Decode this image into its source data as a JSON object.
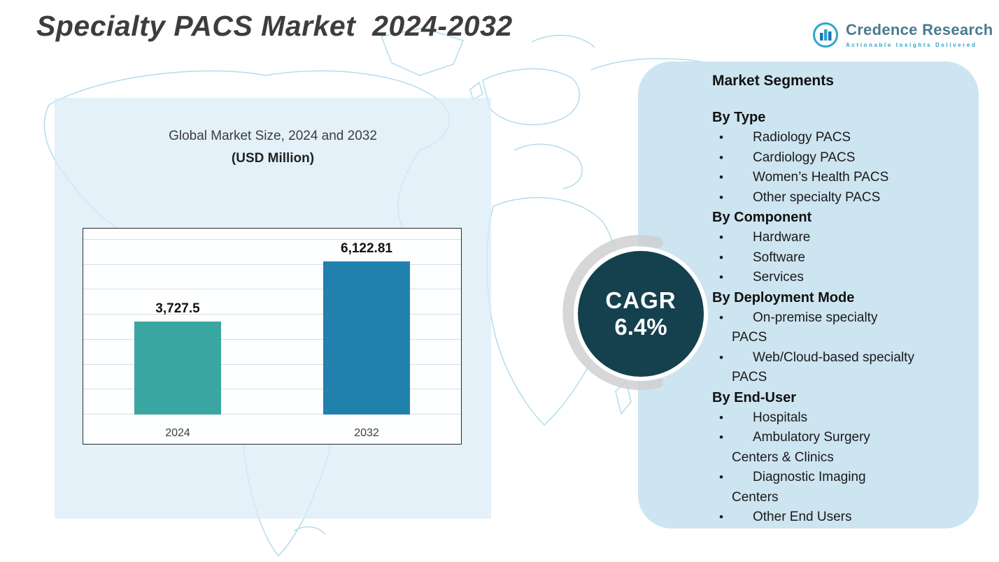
{
  "page": {
    "title": "Specialty PACS Market  2024-2032"
  },
  "logo": {
    "name": "Credence Research",
    "tagline": "Actionable Insights Delivered"
  },
  "chart_data": {
    "type": "bar",
    "title": "Global Market Size, 2024 and 2032",
    "subtitle": "(USD Million)",
    "categories": [
      "2024",
      "2032"
    ],
    "values": [
      3727.5,
      6122.81
    ],
    "data_labels": [
      "3,727.5",
      "6,122.81"
    ],
    "bar_colors": [
      "#3aa6a1",
      "#2181ad"
    ],
    "xlabel": "",
    "ylabel": "",
    "ylim": [
      0,
      7000
    ],
    "grid": true,
    "legend_position": "none"
  },
  "cagr": {
    "label": "CAGR",
    "value": "6.4%"
  },
  "segments": {
    "title": "Market Segments",
    "groups": [
      {
        "heading": "By Type",
        "items": [
          "Radiology PACS",
          "Cardiology PACS",
          "Women’s Health PACS",
          "Other specialty PACS"
        ]
      },
      {
        "heading": "By Component",
        "items": [
          "Hardware",
          "Software",
          "Services"
        ]
      },
      {
        "heading": "By Deployment Mode",
        "items": [
          "On-premise specialty PACS",
          "Web/Cloud-based specialty PACS"
        ]
      },
      {
        "heading": "By End-User",
        "items": [
          "Hospitals",
          "Ambulatory Surgery Centers & Clinics",
          "Diagnostic Imaging Centers",
          "Other End Users"
        ]
      }
    ]
  },
  "colors": {
    "bar_2024": "#3aa6a1",
    "bar_2032": "#2181ad",
    "cagr_badge_bg": "#15414f",
    "right_panel_bg": "#cde4f1",
    "left_panel_bg": "#d9ecf7",
    "map_stroke": "#b3dcec",
    "title_color": "#3d3d3d"
  }
}
